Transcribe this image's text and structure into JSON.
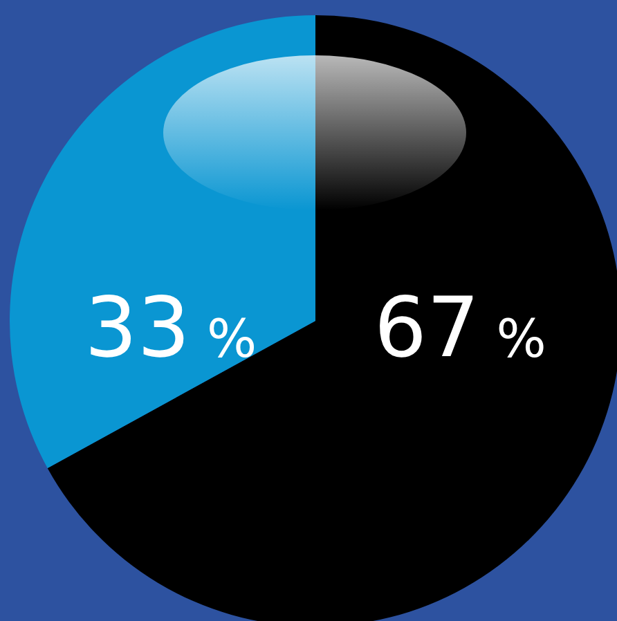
{
  "chart_data": {
    "type": "pie",
    "categories": [
      null,
      null
    ],
    "values": [
      67,
      33
    ],
    "colors": [
      "#000000",
      "#0a96d2"
    ],
    "value_labels": [
      "67 %",
      "33 %"
    ],
    "legend": false
  }
}
